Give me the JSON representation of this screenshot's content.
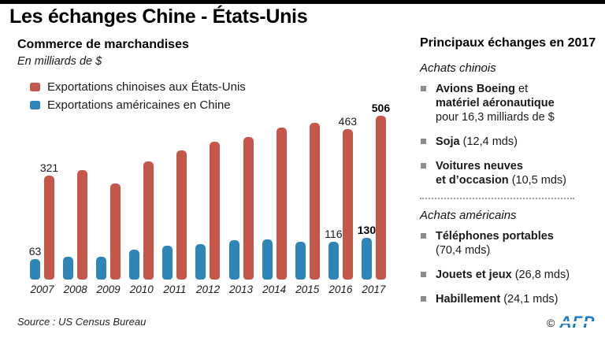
{
  "title": "Les échanges Chine - États-Unis",
  "left": {
    "heading": "Commerce de marchandises",
    "subheading": "En milliards de $",
    "legend": [
      {
        "label": "Exportations chinoises aux États-Unis",
        "color": "#c5574a"
      },
      {
        "label": "Exportations américaines en Chine",
        "color": "#2e86b8"
      }
    ],
    "source": "Source : US Census Bureau"
  },
  "chart_data": {
    "type": "bar",
    "title": "Commerce de marchandises",
    "unit": "En milliards de $",
    "categories": [
      "2007",
      "2008",
      "2009",
      "2010",
      "2011",
      "2012",
      "2013",
      "2014",
      "2015",
      "2016",
      "2017"
    ],
    "series": [
      {
        "key": "exports-americaines",
        "name": "Exportations américaines en Chine",
        "color": "#2e86b8",
        "values": [
          63,
          70,
          70,
          92,
          104,
          110,
          122,
          124,
          116,
          116,
          130
        ]
      },
      {
        "key": "exports-chinoises",
        "name": "Exportations chinoises aux États-Unis",
        "color": "#c5574a",
        "values": [
          321,
          338,
          296,
          365,
          399,
          426,
          440,
          468,
          483,
          463,
          506
        ]
      }
    ],
    "ylim": [
      0,
      510
    ],
    "grid": false,
    "legend_position": "top-left",
    "value_labels": {
      "indices": [
        0,
        9,
        10
      ],
      "bold_indices": [
        10
      ]
    }
  },
  "right": {
    "heading": "Principaux échanges en 2017",
    "sections": [
      {
        "label": "Achats chinois",
        "items": [
          {
            "segments": [
              {
                "t": "Avions Boeing",
                "b": true
              },
              {
                "t": " et",
                "b": false,
                "br": true
              },
              {
                "t": "matériel aéronautique",
                "b": true,
                "br": true
              },
              {
                "t": "pour 16,3 milliards de $",
                "b": false
              }
            ]
          },
          {
            "segments": [
              {
                "t": "Soja",
                "b": true
              },
              {
                "t": " (12,4 mds)",
                "b": false
              }
            ]
          },
          {
            "segments": [
              {
                "t": "Voitures neuves",
                "b": true,
                "br": true
              },
              {
                "t": "et d’occasion",
                "b": true
              },
              {
                "t": " (10,5 mds)",
                "b": false
              }
            ]
          }
        ]
      },
      {
        "label": "Achats américains",
        "items": [
          {
            "segments": [
              {
                "t": "Téléphones portables",
                "b": true,
                "br": true
              },
              {
                "t": "(70,4 mds)",
                "b": false
              }
            ]
          },
          {
            "segments": [
              {
                "t": "Jouets et jeux",
                "b": true
              },
              {
                "t": " (26,8 mds)",
                "b": false
              }
            ]
          },
          {
            "segments": [
              {
                "t": "Habillement",
                "b": true
              },
              {
                "t": " (24,1 mds)",
                "b": false
              }
            ]
          }
        ]
      }
    ]
  },
  "footer": {
    "copyright": "©",
    "logo": "AFP"
  },
  "colors": {
    "china_red": "#c5574a",
    "us_blue": "#2e86b8",
    "bullet_gray": "#8c8c8c",
    "afp_blue": "#1f7ac4",
    "top_bar": "#000000"
  }
}
